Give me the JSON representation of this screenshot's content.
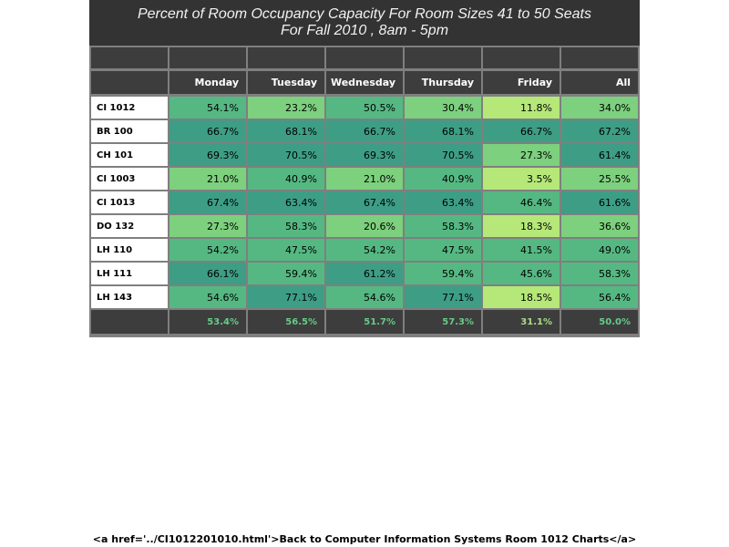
{
  "chart_data": {
    "type": "table",
    "title_line1": "Percent of Room Occupancy Capacity For Room Sizes 41 to 50 Seats",
    "title_line2": "For Fall 2010  , 8am - 5pm",
    "columns": [
      "Monday",
      "Tuesday",
      "Wednesday",
      "Thursday",
      "Friday",
      "All"
    ],
    "rows": [
      {
        "room": "CI 1012",
        "values": [
          54.1,
          23.2,
          50.5,
          30.4,
          11.8,
          34.0
        ]
      },
      {
        "room": "BR 100",
        "values": [
          66.7,
          68.1,
          66.7,
          68.1,
          66.7,
          67.2
        ]
      },
      {
        "room": "CH 101",
        "values": [
          69.3,
          70.5,
          69.3,
          70.5,
          27.3,
          61.4
        ]
      },
      {
        "room": "CI 1003",
        "values": [
          21.0,
          40.9,
          21.0,
          40.9,
          3.5,
          25.5
        ]
      },
      {
        "room": "CI 1013",
        "values": [
          67.4,
          63.4,
          67.4,
          63.4,
          46.4,
          61.6
        ]
      },
      {
        "room": "DO 132",
        "values": [
          27.3,
          58.3,
          20.6,
          58.3,
          18.3,
          36.6
        ]
      },
      {
        "room": "LH 110",
        "values": [
          54.2,
          47.5,
          54.2,
          47.5,
          41.5,
          49.0
        ]
      },
      {
        "room": "LH 111",
        "values": [
          66.1,
          59.4,
          61.2,
          59.4,
          45.6,
          58.3
        ]
      },
      {
        "room": "LH 143",
        "values": [
          54.6,
          77.1,
          54.6,
          77.1,
          18.5,
          56.4
        ]
      }
    ],
    "totals": [
      53.4,
      56.5,
      51.7,
      57.3,
      31.1,
      50.0
    ],
    "colors": {
      "low": "#b5e878",
      "mid_low": "#7dd07e",
      "mid": "#55b882",
      "high": "#3d9e85",
      "frame": "#7f7f7f",
      "header_bg": "#3d3d3d",
      "title_bg": "#333333",
      "total_text": "#66cc88",
      "total_text_low": "#aadd88"
    }
  },
  "footer": {
    "link_text": "<a href='../CI1012201010.html'>Back to Computer Information Systems Room 1012 Charts</a>"
  }
}
